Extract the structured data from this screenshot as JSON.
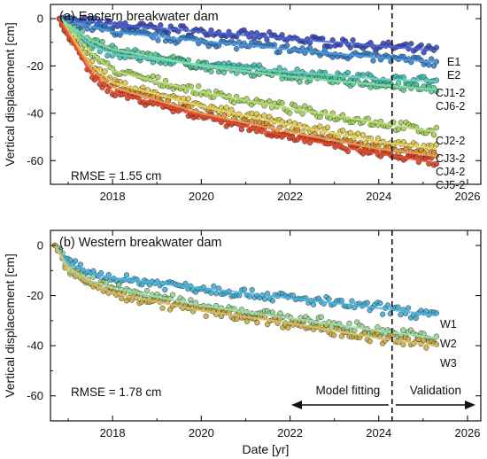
{
  "chart_data": [
    {
      "type": "scatter",
      "title": "(a) Eastern breakwater dam",
      "ylabel": "Vertical displacement [cm]",
      "xlabel": "",
      "xlim": [
        2016.6,
        2026.3
      ],
      "ylim": [
        -70,
        6
      ],
      "x_ticks": [
        2018,
        2020,
        2022,
        2024,
        2026
      ],
      "y_ticks": [
        0,
        -20,
        -40,
        -60
      ],
      "x_tick_labels": [
        "2018",
        "2020",
        "2022",
        "2024",
        "2026"
      ],
      "y_tick_labels": [
        "0",
        "-20",
        "-40",
        "-60"
      ],
      "rmse_label": "RMSE =  1.55 cm",
      "split_date": 2024.3,
      "series": [
        {
          "name": "E1",
          "color": "#2f3fb8",
          "fit_color": "#4a64d8",
          "x": [
            2016.8,
            2018.0,
            2020.0,
            2022.0,
            2024.0,
            2025.3
          ],
          "y": [
            0,
            -2.5,
            -5.5,
            -8.5,
            -11.5,
            -13.5
          ]
        },
        {
          "name": "E2",
          "color": "#2a78c8",
          "fit_color": "#4a9be0",
          "x": [
            2016.8,
            2018.0,
            2020.0,
            2022.0,
            2024.0,
            2025.3
          ],
          "y": [
            0,
            -5.5,
            -9.5,
            -13.0,
            -16.5,
            -18.5
          ]
        },
        {
          "name": "CJ1-2",
          "color": "#35b8b0",
          "fit_color": "#6fd6c8",
          "x": [
            2016.8,
            2017.5,
            2018.0,
            2020.0,
            2022.0,
            2024.0,
            2025.3
          ],
          "y": [
            0,
            -11,
            -15,
            -19.5,
            -22.5,
            -25.5,
            -26.5
          ]
        },
        {
          "name": "CJ6-2",
          "color": "#4cc48c",
          "fit_color": "#8fe0b0",
          "x": [
            2016.8,
            2017.5,
            2018.0,
            2020.0,
            2022.0,
            2024.0,
            2025.3
          ],
          "y": [
            0,
            -9,
            -13,
            -20,
            -24.5,
            -28,
            -30
          ]
        },
        {
          "name": "CJ2-2",
          "color": "#9ccc4a",
          "fit_color": "#bfe080",
          "x": [
            2016.8,
            2017.5,
            2018.0,
            2020.0,
            2022.0,
            2024.0,
            2025.3
          ],
          "y": [
            0,
            -14,
            -22,
            -31,
            -38,
            -44,
            -48
          ]
        },
        {
          "name": "CJ3-2",
          "color": "#d9c23a",
          "fit_color": "#ecd870",
          "x": [
            2016.8,
            2017.5,
            2018.0,
            2020.0,
            2022.0,
            2024.0,
            2025.3
          ],
          "y": [
            0,
            -19,
            -27,
            -37,
            -45,
            -52,
            -55
          ]
        },
        {
          "name": "CJ4-2",
          "color": "#e0892a",
          "fit_color": "#f2a860",
          "x": [
            2016.8,
            2017.5,
            2018.0,
            2020.0,
            2022.0,
            2024.0,
            2025.3
          ],
          "y": [
            0,
            -21,
            -29,
            -40,
            -48,
            -55,
            -58
          ]
        },
        {
          "name": "CJ5-2",
          "color": "#d13a1e",
          "fit_color": "#ee4a2a",
          "x": [
            2016.8,
            2017.5,
            2018.0,
            2020.0,
            2022.0,
            2024.0,
            2025.3
          ],
          "y": [
            0,
            -23,
            -31,
            -41,
            -50,
            -57,
            -61
          ]
        }
      ]
    },
    {
      "type": "scatter",
      "title": "(b) Western breakwater dam",
      "ylabel": "Vertical displacement [cm]",
      "xlabel": "Date [yr]",
      "xlim": [
        2016.6,
        2026.3
      ],
      "ylim": [
        -70,
        6
      ],
      "x_ticks": [
        2018,
        2020,
        2022,
        2024,
        2026
      ],
      "y_ticks": [
        0,
        -20,
        -40,
        -60
      ],
      "x_tick_labels": [
        "2018",
        "2020",
        "2022",
        "2024",
        "2026"
      ],
      "y_tick_labels": [
        "0",
        "-20",
        "-40",
        "-60"
      ],
      "rmse_label": "RMSE =  1.78 cm",
      "split_date": 2024.3,
      "fitting_label": "Model fitting",
      "validation_label": "Validation",
      "series": [
        {
          "name": "W1",
          "color": "#3aa8d0",
          "fit_color": "#4ab4e0",
          "x": [
            2016.7,
            2017.0,
            2017.5,
            2018.0,
            2020.0,
            2022.0,
            2024.0,
            2025.3
          ],
          "y": [
            0,
            -7,
            -11,
            -13,
            -17,
            -21,
            -25,
            -28
          ]
        },
        {
          "name": "W2",
          "color": "#8fd08a",
          "fit_color": "#a8e0b0",
          "x": [
            2016.7,
            2017.0,
            2017.5,
            2018.0,
            2020.0,
            2022.0,
            2024.0,
            2025.3
          ],
          "y": [
            0,
            -9,
            -14,
            -17,
            -24,
            -29,
            -34,
            -37
          ]
        },
        {
          "name": "W3",
          "color": "#c8a838",
          "fit_color": "#d8c070",
          "x": [
            2016.7,
            2017.0,
            2017.5,
            2018.0,
            2020.0,
            2022.0,
            2024.0,
            2025.3
          ],
          "y": [
            0,
            -10,
            -15,
            -19,
            -26,
            -31,
            -37,
            -40
          ]
        }
      ]
    }
  ]
}
